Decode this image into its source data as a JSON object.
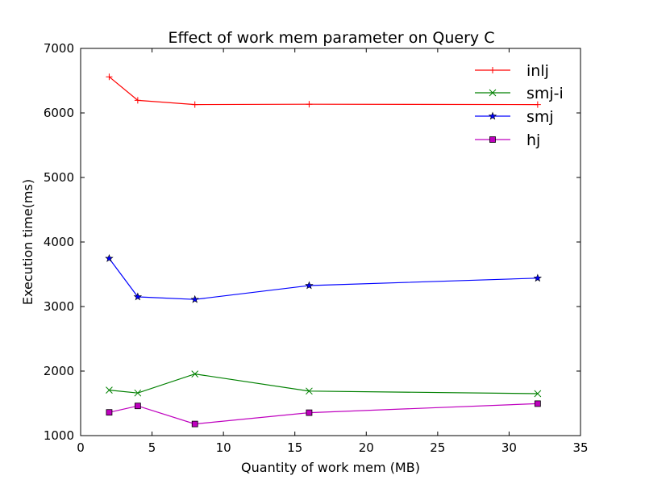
{
  "chart_data": {
    "type": "line",
    "title": "Effect of work mem parameter on Query C",
    "xlabel": "Quantity of work mem (MB)",
    "ylabel": "Execution time(ms)",
    "xlim": [
      0,
      35
    ],
    "ylim": [
      1000,
      7000
    ],
    "xticks": [
      0,
      5,
      10,
      15,
      20,
      25,
      30,
      35
    ],
    "yticks": [
      1000,
      2000,
      3000,
      4000,
      5000,
      6000,
      7000
    ],
    "grid": false,
    "legend_position": "top-right",
    "x": [
      2,
      4,
      8,
      16,
      32
    ],
    "series": [
      {
        "name": "inlj",
        "color": "#ff0000",
        "marker": "plus",
        "values": [
          6560,
          6195,
          6130,
          6135,
          6130
        ]
      },
      {
        "name": "smj-i",
        "color": "#008000",
        "marker": "x",
        "values": [
          1705,
          1660,
          1955,
          1690,
          1650
        ]
      },
      {
        "name": "smj",
        "color": "#0000ff",
        "marker": "star",
        "values": [
          3745,
          3150,
          3110,
          3325,
          3440
        ]
      },
      {
        "name": "hj",
        "color": "#bf00bf",
        "marker": "square",
        "values": [
          1360,
          1460,
          1180,
          1355,
          1495
        ]
      }
    ]
  }
}
